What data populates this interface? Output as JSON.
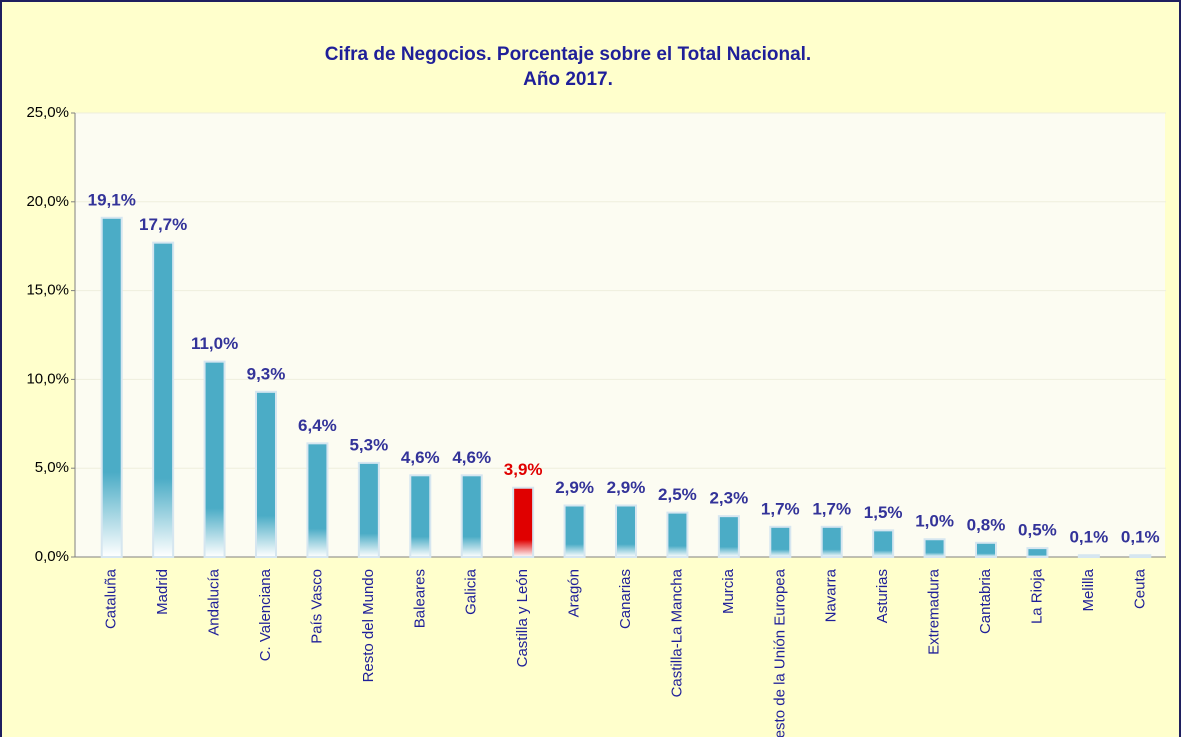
{
  "chart_data": {
    "type": "bar",
    "title": [
      "Cifra de Negocios. Porcentaje sobre el Total Nacional.",
      "Año 2017."
    ],
    "categories": [
      "Cataluña",
      "Madrid",
      "Andalucía",
      "C. Valenciana",
      "País Vasco",
      "Resto del Mundo",
      "Baleares",
      "Galicia",
      "Castilla y León",
      "Aragón",
      "Canarias",
      "Castilla-La Mancha",
      "Murcia",
      "Resto de la Unión Europea",
      "Navarra",
      "Asturias",
      "Extremadura",
      "Cantabria",
      "La Rioja",
      "Melilla",
      "Ceuta"
    ],
    "values": [
      19.1,
      17.7,
      11.0,
      9.3,
      6.4,
      5.3,
      4.6,
      4.6,
      3.9,
      2.9,
      2.9,
      2.5,
      2.3,
      1.7,
      1.7,
      1.5,
      1.0,
      0.8,
      0.5,
      0.1,
      0.1
    ],
    "value_labels": [
      "19,1%",
      "17,7%",
      "11,0%",
      "9,3%",
      "6,4%",
      "5,3%",
      "4,6%",
      "4,6%",
      "3,9%",
      "2,9%",
      "2,9%",
      "2,5%",
      "2,3%",
      "1,7%",
      "1,7%",
      "1,5%",
      "1,0%",
      "0,8%",
      "0,5%",
      "0,1%",
      "0,1%"
    ],
    "color": "#4BACC6",
    "colors": [
      "#4BACC6",
      "#4BACC6",
      "#4BACC6",
      "#4BACC6",
      "#4BACC6",
      "#4BACC6",
      "#4BACC6",
      "#4BACC6",
      "#E00000",
      "#4BACC6",
      "#4BACC6",
      "#4BACC6",
      "#4BACC6",
      "#4BACC6",
      "#4BACC6",
      "#4BACC6",
      "#4BACC6",
      "#4BACC6",
      "#4BACC6",
      "#4BACC6",
      "#4BACC6"
    ],
    "label_color": "#333399",
    "ylim": [
      0,
      25
    ],
    "yticks": [
      {
        "value": 0,
        "label": "0,0%"
      },
      {
        "value": 5,
        "label": "5,0%"
      },
      {
        "value": 10,
        "label": "10,0%"
      },
      {
        "value": 15,
        "label": "15,0%"
      },
      {
        "value": 20,
        "label": "20,0%"
      },
      {
        "value": 25,
        "label": "25,0%"
      }
    ],
    "grid": true
  }
}
